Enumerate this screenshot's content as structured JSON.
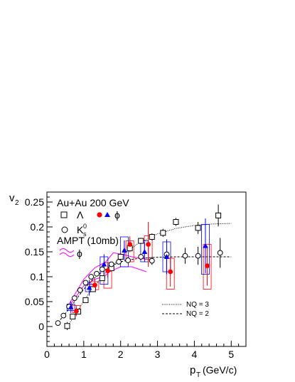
{
  "chart_data": {
    "type": "scatter",
    "xlabel_main": "p",
    "xlabel_sub": "T",
    "xlabel_unit": "(GeV/c)",
    "ylabel_main": "v",
    "ylabel_sub": "2",
    "xlim": [
      0,
      5.4
    ],
    "ylim": [
      -0.04,
      0.27
    ],
    "xticks": [
      0,
      1,
      2,
      3,
      4,
      5
    ],
    "yticks": [
      0,
      0.05,
      0.1,
      0.15,
      0.2,
      0.25
    ],
    "xtick_labels": [
      "0",
      "1",
      "2",
      "3",
      "4",
      "5"
    ],
    "ytick_labels": [
      "0",
      "0.05",
      "0.1",
      "0.15",
      "0.2",
      "0.25"
    ],
    "legend": {
      "system": "Au+Au 200 GeV",
      "lambda": "Λ",
      "phi": "ϕ",
      "ks_main": "K",
      "ks_sub": "s",
      "ks_sup": "0",
      "ampt": "AMPT (10mb)",
      "ampt_phi": "ϕ",
      "nq3": "NQ = 3",
      "nq2": "NQ = 2"
    },
    "colors": {
      "red": "#ff0000",
      "blue": "#0000ff",
      "magenta": "#ff00ff",
      "black": "#000000"
    },
    "series": [
      {
        "name": "Λ",
        "marker": "open-square",
        "color": "#000000",
        "points": [
          {
            "x": 0.55,
            "y": 0.001,
            "err": 0.008
          },
          {
            "x": 0.7,
            "y": 0.02,
            "err": 0.005
          },
          {
            "x": 0.85,
            "y": 0.03,
            "err": 0.004
          },
          {
            "x": 1.05,
            "y": 0.053,
            "err": 0.004
          },
          {
            "x": 1.25,
            "y": 0.075,
            "err": 0.004
          },
          {
            "x": 1.5,
            "y": 0.097,
            "err": 0.004
          },
          {
            "x": 1.75,
            "y": 0.117,
            "err": 0.004
          },
          {
            "x": 2.0,
            "y": 0.14,
            "err": 0.005
          },
          {
            "x": 2.25,
            "y": 0.157,
            "err": 0.005
          },
          {
            "x": 2.55,
            "y": 0.172,
            "err": 0.006
          },
          {
            "x": 2.85,
            "y": 0.18,
            "err": 0.007
          },
          {
            "x": 3.15,
            "y": 0.188,
            "err": 0.008
          },
          {
            "x": 3.5,
            "y": 0.21,
            "err": 0.008
          },
          {
            "x": 4.1,
            "y": 0.198,
            "err": 0.012
          },
          {
            "x": 4.65,
            "y": 0.223,
            "err": 0.022
          }
        ]
      },
      {
        "name": "K",
        "marker": "open-circle",
        "color": "#000000",
        "points": [
          {
            "x": 0.3,
            "y": 0.007,
            "err": 0.004
          },
          {
            "x": 0.45,
            "y": 0.022,
            "err": 0.004
          },
          {
            "x": 0.6,
            "y": 0.04,
            "err": 0.004
          },
          {
            "x": 0.75,
            "y": 0.057,
            "err": 0.004
          },
          {
            "x": 0.9,
            "y": 0.073,
            "err": 0.004
          },
          {
            "x": 1.05,
            "y": 0.088,
            "err": 0.004
          },
          {
            "x": 1.2,
            "y": 0.1,
            "err": 0.004
          },
          {
            "x": 1.35,
            "y": 0.106,
            "err": 0.004
          },
          {
            "x": 1.5,
            "y": 0.115,
            "err": 0.004
          },
          {
            "x": 1.75,
            "y": 0.125,
            "err": 0.005
          },
          {
            "x": 1.95,
            "y": 0.13,
            "err": 0.005
          },
          {
            "x": 2.2,
            "y": 0.133,
            "err": 0.006
          },
          {
            "x": 2.55,
            "y": 0.14,
            "err": 0.006
          },
          {
            "x": 2.85,
            "y": 0.132,
            "err": 0.008
          },
          {
            "x": 3.25,
            "y": 0.145,
            "err": 0.012
          },
          {
            "x": 3.75,
            "y": 0.142,
            "err": 0.016
          },
          {
            "x": 4.1,
            "y": 0.142,
            "err": 0.018
          },
          {
            "x": 4.7,
            "y": 0.148,
            "err": 0.03
          }
        ]
      },
      {
        "name": "ϕ",
        "marker": "filled-circle",
        "color": "#ff0000",
        "points": [
          {
            "x": 0.8,
            "y": 0.031,
            "err": 0.01,
            "sys_lo": 0.028,
            "sys_hi": 0.042
          },
          {
            "x": 1.3,
            "y": 0.083,
            "err": 0.012,
            "sys_lo": 0.074,
            "sys_hi": 0.09
          },
          {
            "x": 1.65,
            "y": 0.112,
            "err": 0.014,
            "sys_lo": 0.077,
            "sys_hi": 0.128
          },
          {
            "x": 2.25,
            "y": 0.165,
            "err": 0.016,
            "sys_lo": 0.13,
            "sys_hi": 0.172
          },
          {
            "x": 2.75,
            "y": 0.165,
            "err": 0.045,
            "sys_lo": 0.135,
            "sys_hi": 0.182
          },
          {
            "x": 3.35,
            "y": 0.11,
            "err": 0.03,
            "sys_lo": 0.075,
            "sys_hi": 0.137
          },
          {
            "x": 4.35,
            "y": 0.122,
            "err": 0.04,
            "sys_lo": 0.075,
            "sys_hi": 0.165
          }
        ]
      },
      {
        "name": "ϕ",
        "marker": "filled-triangle",
        "color": "#0000ff",
        "points": [
          {
            "x": 0.65,
            "y": 0.039,
            "err": 0.012,
            "sys_lo": 0.032,
            "sys_hi": 0.045
          },
          {
            "x": 1.15,
            "y": 0.078,
            "err": 0.016,
            "sys_lo": 0.07,
            "sys_hi": 0.085
          },
          {
            "x": 1.55,
            "y": 0.125,
            "err": 0.02,
            "sys_lo": 0.085,
            "sys_hi": 0.14
          },
          {
            "x": 2.1,
            "y": 0.153,
            "err": 0.02,
            "sys_lo": 0.12,
            "sys_hi": 0.18
          },
          {
            "x": 2.65,
            "y": 0.15,
            "err": 0.02,
            "sys_lo": 0.13,
            "sys_hi": 0.172
          },
          {
            "x": 3.25,
            "y": 0.14,
            "err": 0.035,
            "sys_lo": 0.11,
            "sys_hi": 0.17
          },
          {
            "x": 4.3,
            "y": 0.162,
            "err": 0.055,
            "sys_lo": 0.105,
            "sys_hi": 0.205
          }
        ]
      },
      {
        "name": "NQ = 3",
        "style": "dotted-curve",
        "color": "#000000",
        "points": [
          {
            "x": 0.55,
            "y": 0.0
          },
          {
            "x": 0.8,
            "y": 0.027
          },
          {
            "x": 1.0,
            "y": 0.052
          },
          {
            "x": 1.25,
            "y": 0.077
          },
          {
            "x": 1.5,
            "y": 0.1
          },
          {
            "x": 1.75,
            "y": 0.12
          },
          {
            "x": 2.0,
            "y": 0.14
          },
          {
            "x": 2.25,
            "y": 0.155
          },
          {
            "x": 2.5,
            "y": 0.168
          },
          {
            "x": 2.75,
            "y": 0.177
          },
          {
            "x": 3.0,
            "y": 0.186
          },
          {
            "x": 3.5,
            "y": 0.197
          },
          {
            "x": 4.0,
            "y": 0.203
          },
          {
            "x": 4.5,
            "y": 0.206
          },
          {
            "x": 5.0,
            "y": 0.207
          }
        ]
      },
      {
        "name": "NQ = 2",
        "style": "dashed-curve",
        "color": "#000000",
        "points": [
          {
            "x": 0.3,
            "y": 0.008
          },
          {
            "x": 0.5,
            "y": 0.026
          },
          {
            "x": 0.75,
            "y": 0.05
          },
          {
            "x": 1.0,
            "y": 0.075
          },
          {
            "x": 1.25,
            "y": 0.095
          },
          {
            "x": 1.5,
            "y": 0.11
          },
          {
            "x": 1.75,
            "y": 0.122
          },
          {
            "x": 2.0,
            "y": 0.13
          },
          {
            "x": 2.25,
            "y": 0.134
          },
          {
            "x": 2.5,
            "y": 0.137
          },
          {
            "x": 2.75,
            "y": 0.138
          },
          {
            "x": 3.0,
            "y": 0.139
          },
          {
            "x": 3.5,
            "y": 0.14
          },
          {
            "x": 4.0,
            "y": 0.14
          },
          {
            "x": 5.0,
            "y": 0.14
          }
        ]
      },
      {
        "name": "AMPT (10mb)",
        "style": "band",
        "color": "#ff00ff",
        "upper": [
          {
            "x": 0.6,
            "y": 0.045
          },
          {
            "x": 1.0,
            "y": 0.095
          },
          {
            "x": 1.3,
            "y": 0.118
          },
          {
            "x": 1.6,
            "y": 0.13
          },
          {
            "x": 1.8,
            "y": 0.148
          },
          {
            "x": 2.05,
            "y": 0.145
          },
          {
            "x": 2.3,
            "y": 0.14
          },
          {
            "x": 2.7,
            "y": 0.135
          }
        ],
        "lower": [
          {
            "x": 0.6,
            "y": 0.04
          },
          {
            "x": 1.0,
            "y": 0.082
          },
          {
            "x": 1.3,
            "y": 0.095
          },
          {
            "x": 1.55,
            "y": 0.1
          },
          {
            "x": 1.7,
            "y": 0.11
          },
          {
            "x": 2.0,
            "y": 0.12
          },
          {
            "x": 2.3,
            "y": 0.12
          },
          {
            "x": 2.7,
            "y": 0.11
          }
        ]
      }
    ]
  }
}
